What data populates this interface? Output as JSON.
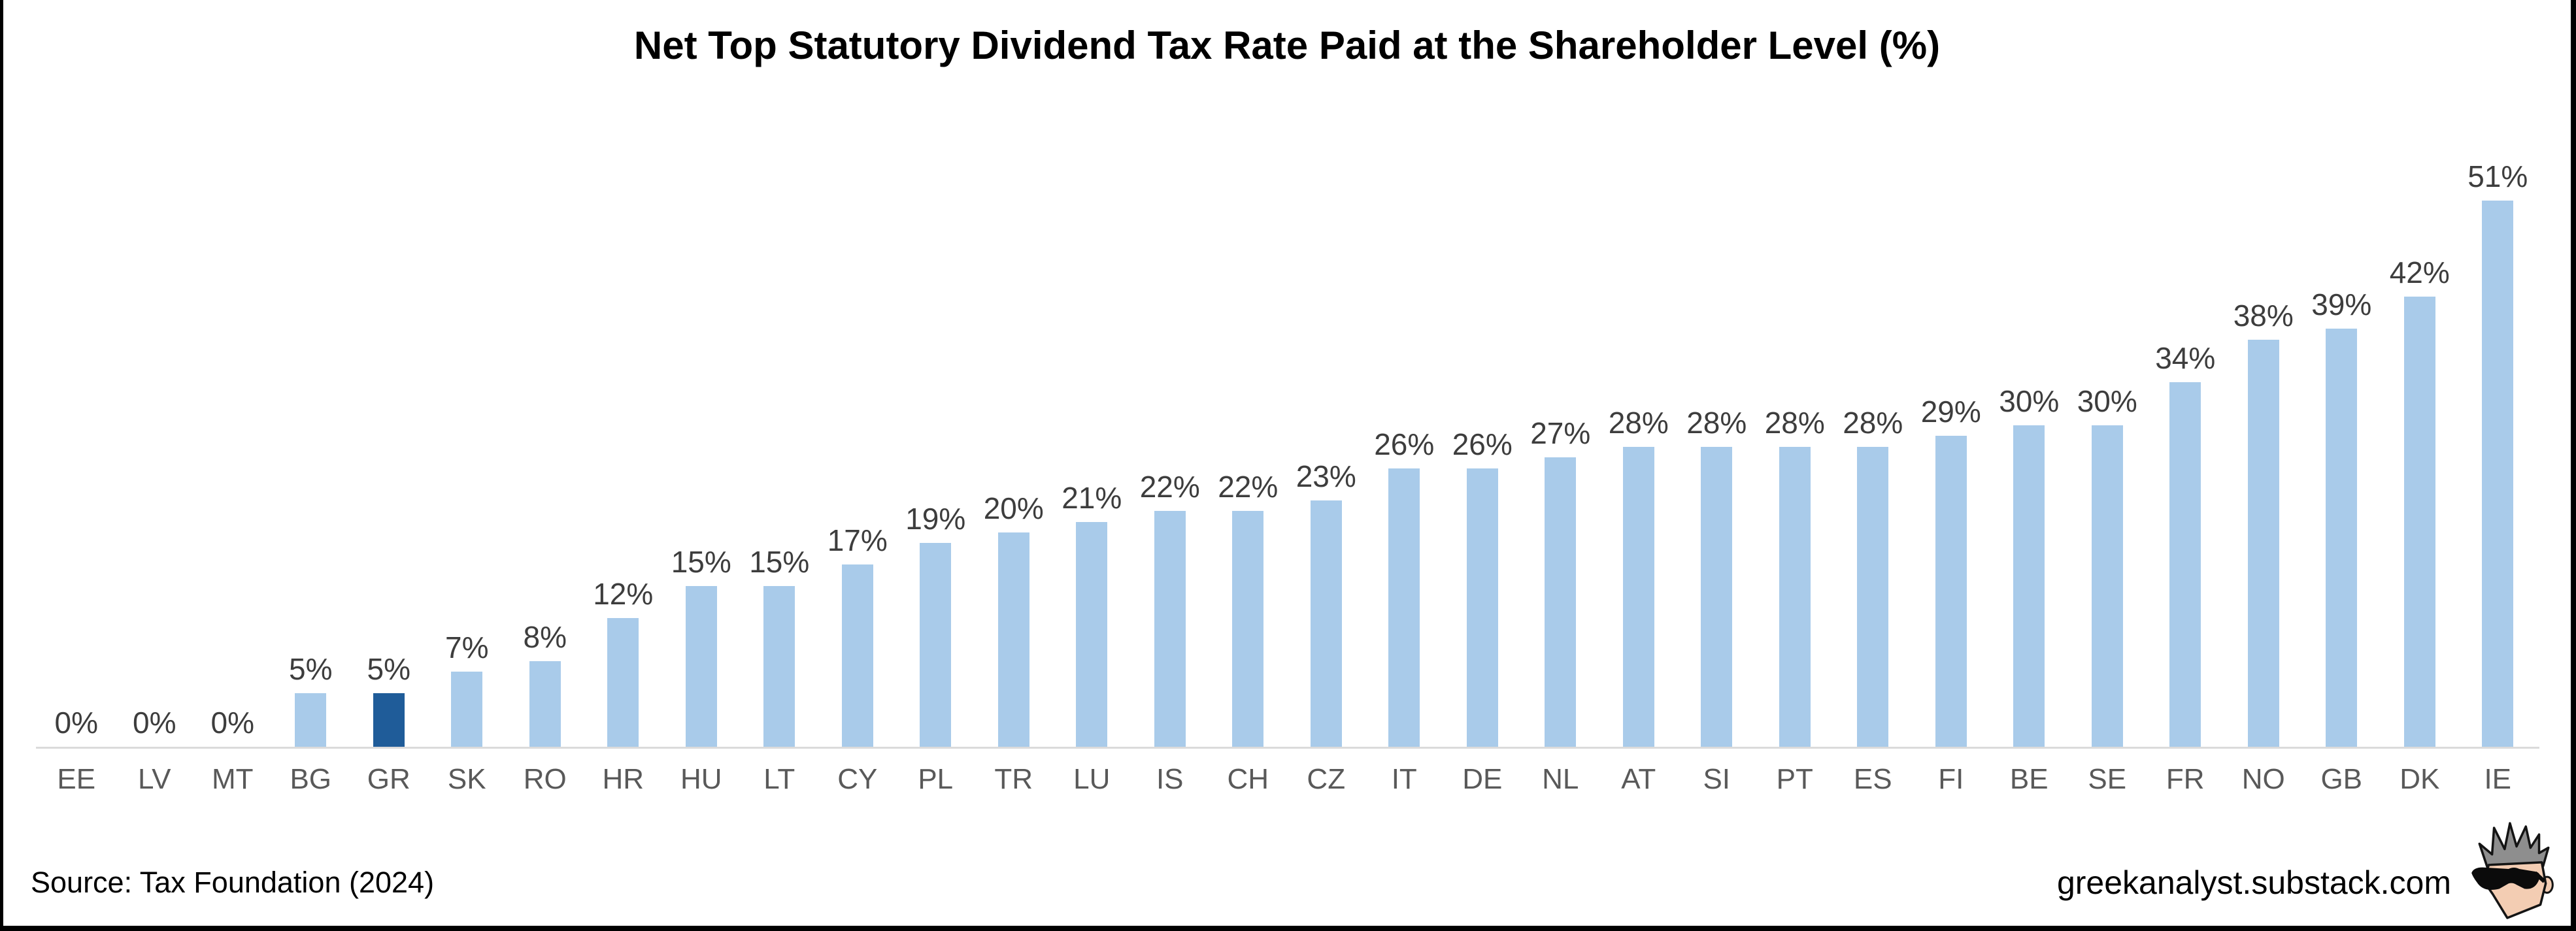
{
  "chart_data": {
    "type": "bar",
    "title": "Net Top Statutory Dividend Tax Rate Paid at the Shareholder Level (%)",
    "categories": [
      "EE",
      "LV",
      "MT",
      "BG",
      "GR",
      "SK",
      "RO",
      "HR",
      "HU",
      "LT",
      "CY",
      "PL",
      "TR",
      "LU",
      "IS",
      "CH",
      "CZ",
      "IT",
      "DE",
      "NL",
      "AT",
      "SI",
      "PT",
      "ES",
      "FI",
      "BE",
      "SE",
      "FR",
      "NO",
      "GB",
      "DK",
      "IE"
    ],
    "values": [
      0,
      0,
      0,
      5,
      5,
      7,
      8,
      12,
      15,
      15,
      17,
      19,
      20,
      21,
      22,
      22,
      23,
      26,
      26,
      27,
      28,
      28,
      28,
      28,
      29,
      30,
      30,
      34,
      38,
      39,
      42,
      51
    ],
    "unit": "%",
    "data_labels": "value shown above each bar as N%",
    "xlabel": "",
    "ylabel": "",
    "ylim": [
      0,
      55
    ],
    "grid": false,
    "legend": false,
    "highlight_category": "GR",
    "colors": {
      "bar": "#A9CBEA",
      "highlight_bar": "#1F5C99",
      "axis_line": "#DBDBDB",
      "value_label": "#3D3D3D",
      "category_label": "#595959",
      "title": "#000000",
      "frame_border": "#000000"
    }
  },
  "footer": {
    "source": "Source: Tax Foundation (2024)",
    "watermark": "greekanalyst.substack.com",
    "logo_icon": "greek-analyst-face-logo"
  }
}
